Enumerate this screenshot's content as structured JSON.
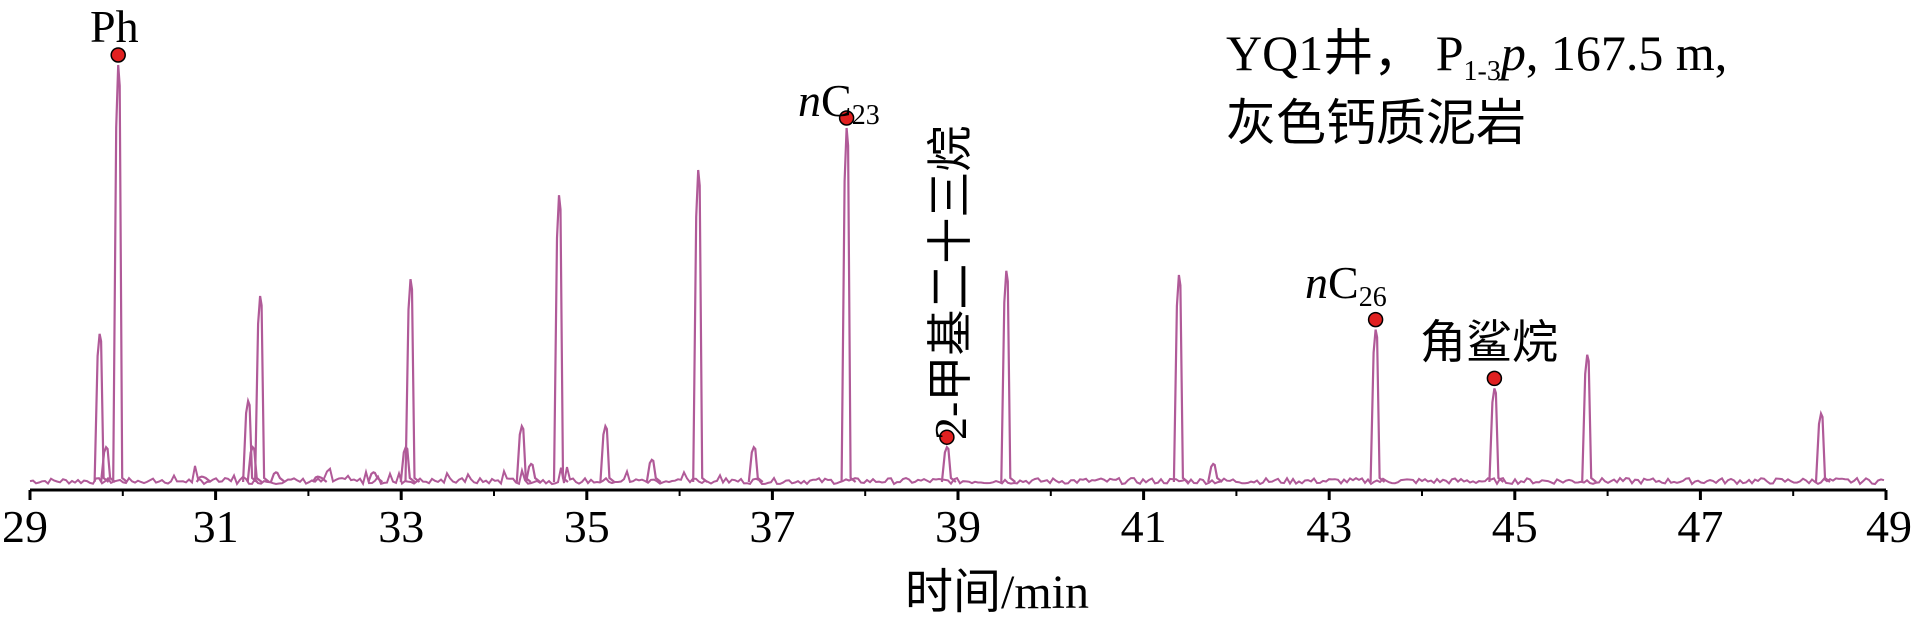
{
  "chart_data": {
    "type": "line",
    "xlabel": "时间/min",
    "ylabel": "",
    "xlim": [
      29,
      49
    ],
    "x_ticks": [
      "29",
      "31",
      "33",
      "35",
      "37",
      "39",
      "41",
      "43",
      "45",
      "47",
      "49"
    ],
    "line_color": "#b05a98",
    "marker_color": "#e02020",
    "sample_label": {
      "line1": "YQ1井， P",
      "line1_sub": "1-3",
      "line1_italic": "p",
      "line1_rest": ", 167.5 m,",
      "line2": "灰色钙质泥岩"
    },
    "peaks": [
      {
        "x": 29.75,
        "y": 36
      },
      {
        "x": 29.82,
        "y": 9
      },
      {
        "x": 29.95,
        "y": 100,
        "label": "Ph"
      },
      {
        "x": 30.85,
        "y": 2
      },
      {
        "x": 31.35,
        "y": 20
      },
      {
        "x": 31.4,
        "y": 9
      },
      {
        "x": 31.48,
        "y": 45
      },
      {
        "x": 31.65,
        "y": 3
      },
      {
        "x": 32.1,
        "y": 2
      },
      {
        "x": 32.7,
        "y": 3
      },
      {
        "x": 33.05,
        "y": 9
      },
      {
        "x": 33.1,
        "y": 49
      },
      {
        "x": 34.3,
        "y": 14
      },
      {
        "x": 34.4,
        "y": 5
      },
      {
        "x": 34.7,
        "y": 69
      },
      {
        "x": 35.2,
        "y": 14
      },
      {
        "x": 35.7,
        "y": 6
      },
      {
        "x": 36.2,
        "y": 75
      },
      {
        "x": 36.8,
        "y": 9
      },
      {
        "x": 37.8,
        "y": 85,
        "label": "nC23"
      },
      {
        "x": 38.88,
        "y": 9,
        "label": "2-甲基二十三烷"
      },
      {
        "x": 39.52,
        "y": 51
      },
      {
        "x": 41.38,
        "y": 50
      },
      {
        "x": 41.75,
        "y": 5
      },
      {
        "x": 43.5,
        "y": 37,
        "label": "nC26"
      },
      {
        "x": 44.78,
        "y": 23,
        "label": "角鲨烷"
      },
      {
        "x": 45.78,
        "y": 31
      },
      {
        "x": 48.3,
        "y": 17
      }
    ]
  }
}
